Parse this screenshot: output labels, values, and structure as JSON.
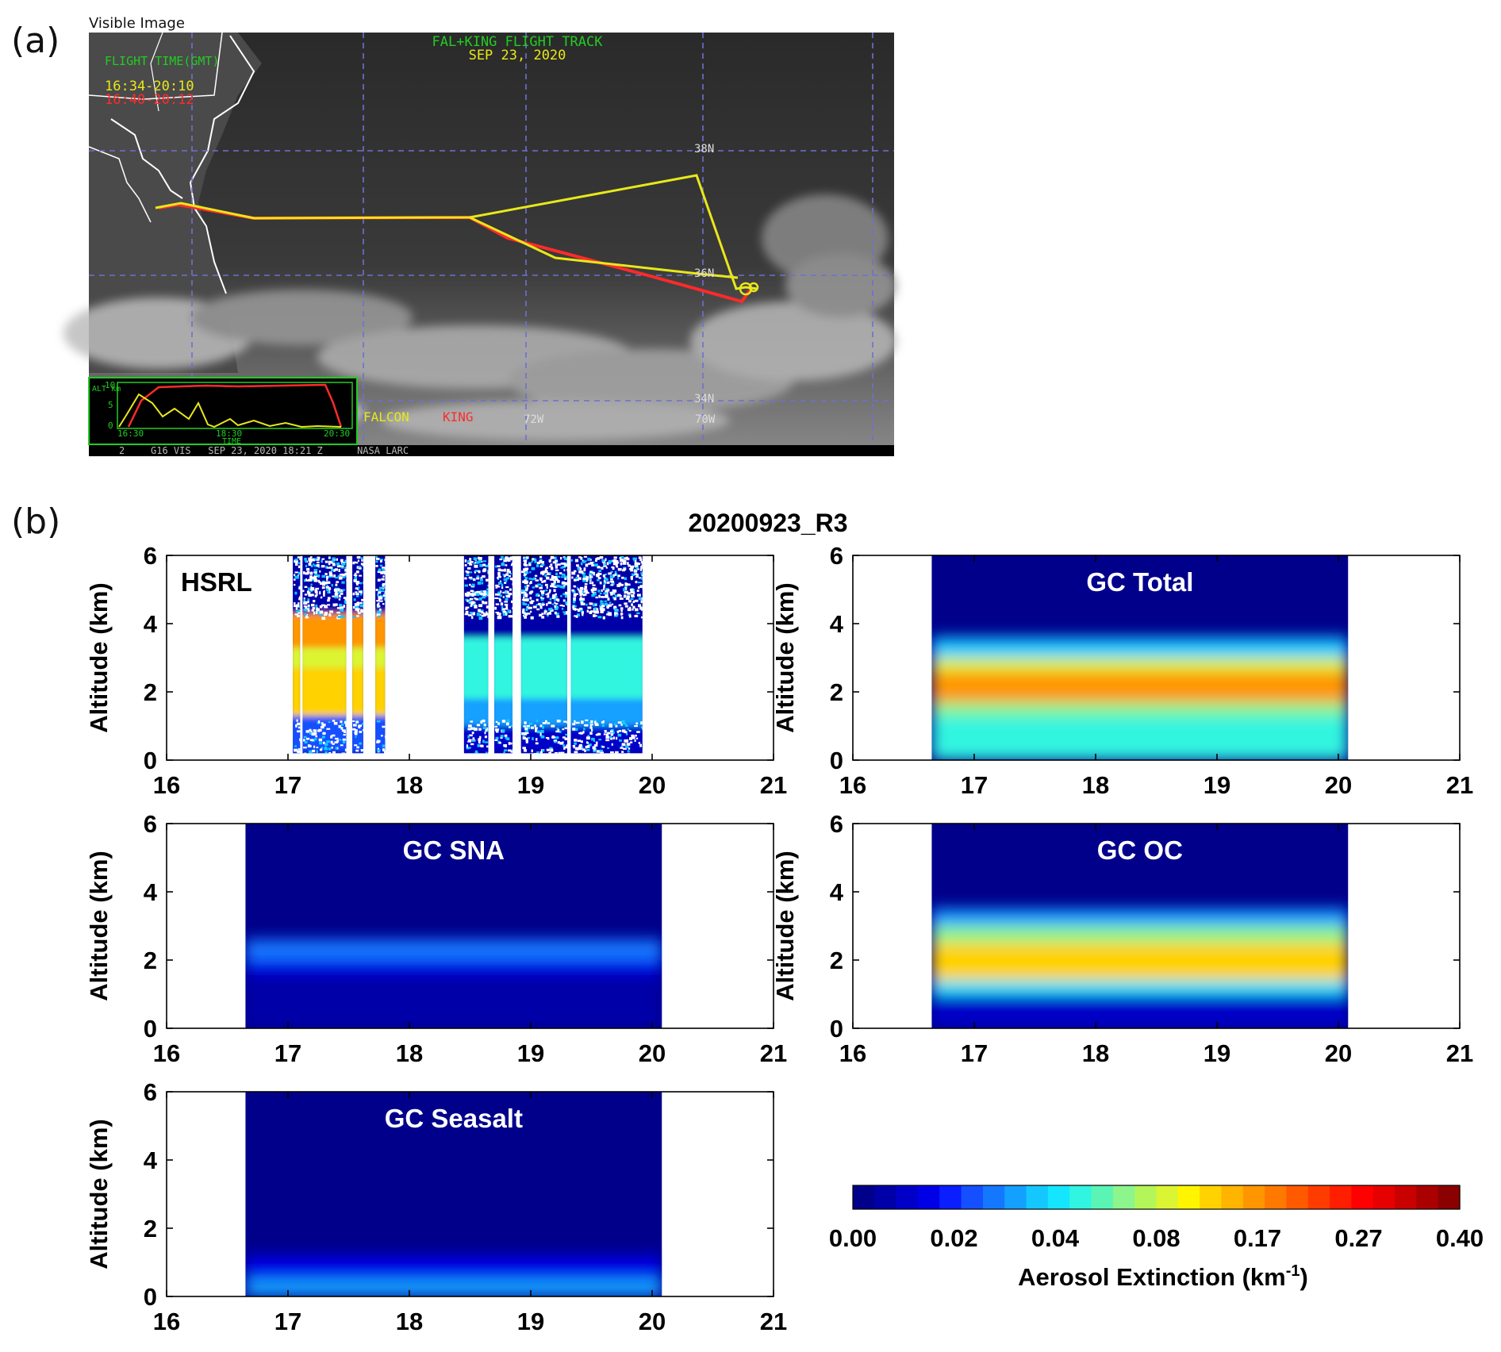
{
  "panel_a": {
    "letter": "(a)",
    "image_label": "Visible Image",
    "title_line1": "FAL+KING FLIGHT TRACK",
    "title_line2": "SEP 23, 2020",
    "flight_time_label": "FLIGHT TIME(GMT)",
    "falcon_time": "16:34-20:10",
    "king_time": "16:40-20:12",
    "lat_labels": [
      "38N",
      "36N",
      "34N"
    ],
    "lon_labels": [
      "72W",
      "70W"
    ],
    "legend_falcon": "FALCON",
    "legend_king": "KING",
    "inset_ylabel": "ALT km",
    "inset_yticks": [
      "10",
      "5",
      "0"
    ],
    "inset_xticks": [
      "16:30",
      "18:30",
      "20:30"
    ],
    "inset_xlabel": "TIME",
    "footer": "G16 VIS   SEP 23, 2020 18:21 Z      NASA LARC",
    "footer_num": "2",
    "colors": {
      "falcon": "#e8e81a",
      "king": "#ff2a2a",
      "grid": "#6f6fd0",
      "label_green": "#22cc22"
    }
  },
  "panel_b": {
    "letter": "(b)",
    "title": "20200923_R3"
  },
  "chart_data": [
    {
      "type": "heatmap",
      "title": "HSRL",
      "ylabel": "Altitude (km)",
      "xlabel": "",
      "xlim": [
        16,
        21
      ],
      "ylim": [
        0,
        6
      ],
      "xticks": [
        "16",
        "17",
        "18",
        "19",
        "20",
        "21"
      ],
      "yticks": [
        "0",
        "2",
        "4",
        "6"
      ],
      "data_segments_hours": [
        [
          17.04,
          17.1
        ],
        [
          17.12,
          17.48
        ],
        [
          17.53,
          17.62
        ],
        [
          17.72,
          17.8
        ],
        [
          18.45,
          18.65
        ],
        [
          18.7,
          18.85
        ],
        [
          18.92,
          19.3
        ],
        [
          19.33,
          19.92
        ]
      ],
      "profiles": [
        {
          "x": 17.3,
          "layers": [
            {
              "alt": [
                0.2,
                1.3
              ],
              "value": 0.02
            },
            {
              "alt": [
                1.3,
                2.7
              ],
              "value": 0.12
            },
            {
              "alt": [
                2.7,
                3.3
              ],
              "value": 0.08
            },
            {
              "alt": [
                3.3,
                4.3
              ],
              "value": 0.17
            },
            {
              "alt": [
                4.3,
                6.0
              ],
              "value": 0.005
            }
          ]
        },
        {
          "x": 19.4,
          "layers": [
            {
              "alt": [
                0.2,
                1.0
              ],
              "value": 0.01
            },
            {
              "alt": [
                1.0,
                1.8
              ],
              "value": 0.03
            },
            {
              "alt": [
                1.8,
                3.6
              ],
              "value": 0.05
            },
            {
              "alt": [
                3.6,
                6.0
              ],
              "value": 0.005
            }
          ]
        }
      ]
    },
    {
      "type": "heatmap",
      "title": "GC Total",
      "ylabel": "Altitude (km)",
      "xlim": [
        16,
        21
      ],
      "ylim": [
        0,
        6
      ],
      "xticks": [
        "16",
        "17",
        "18",
        "19",
        "20",
        "21"
      ],
      "yticks": [
        "0",
        "2",
        "4",
        "6"
      ],
      "x_extent": [
        16.65,
        20.08
      ],
      "profile": [
        {
          "alt": [
            0.0,
            1.3
          ],
          "value": 0.045
        },
        {
          "alt": [
            1.3,
            1.7
          ],
          "value": 0.07
        },
        {
          "alt": [
            1.7,
            2.6
          ],
          "value": 0.17
        },
        {
          "alt": [
            2.6,
            3.0
          ],
          "value": 0.08
        },
        {
          "alt": [
            3.0,
            3.6
          ],
          "value": 0.035
        },
        {
          "alt": [
            3.6,
            6.0
          ],
          "value": 0.0
        }
      ]
    },
    {
      "type": "heatmap",
      "title": "GC SNA",
      "ylabel": "Altitude (km)",
      "xlim": [
        16,
        21
      ],
      "ylim": [
        0,
        6
      ],
      "xticks": [
        "16",
        "17",
        "18",
        "19",
        "20",
        "21"
      ],
      "yticks": [
        "0",
        "2",
        "4",
        "6"
      ],
      "x_extent": [
        16.65,
        20.08
      ],
      "profile": [
        {
          "alt": [
            0.0,
            1.6
          ],
          "value": 0.005
        },
        {
          "alt": [
            1.6,
            2.0
          ],
          "value": 0.015
        },
        {
          "alt": [
            2.0,
            2.6
          ],
          "value": 0.025
        },
        {
          "alt": [
            2.6,
            6.0
          ],
          "value": 0.0
        }
      ]
    },
    {
      "type": "heatmap",
      "title": "GC OC",
      "ylabel": "Altitude (km)",
      "xlim": [
        16,
        21
      ],
      "ylim": [
        0,
        6
      ],
      "xticks": [
        "16",
        "17",
        "18",
        "19",
        "20",
        "21"
      ],
      "yticks": [
        "0",
        "2",
        "4",
        "6"
      ],
      "x_extent": [
        16.65,
        20.08
      ],
      "profile": [
        {
          "alt": [
            0.0,
            1.0
          ],
          "value": 0.01
        },
        {
          "alt": [
            1.0,
            1.4
          ],
          "value": 0.04
        },
        {
          "alt": [
            1.4,
            2.5
          ],
          "value": 0.12
        },
        {
          "alt": [
            2.5,
            3.0
          ],
          "value": 0.07
        },
        {
          "alt": [
            3.0,
            3.5
          ],
          "value": 0.03
        },
        {
          "alt": [
            3.5,
            6.0
          ],
          "value": 0.0
        }
      ]
    },
    {
      "type": "heatmap",
      "title": "GC Seasalt",
      "ylabel": "Altitude (km)",
      "xlim": [
        16,
        21
      ],
      "ylim": [
        0,
        6
      ],
      "xticks": [
        "16",
        "17",
        "18",
        "19",
        "20",
        "21"
      ],
      "yticks": [
        "0",
        "2",
        "4",
        "6"
      ],
      "x_extent": [
        16.65,
        20.08
      ],
      "profile": [
        {
          "alt": [
            0.0,
            0.5
          ],
          "value": 0.03
        },
        {
          "alt": [
            0.5,
            1.2
          ],
          "value": 0.015
        },
        {
          "alt": [
            1.2,
            6.0
          ],
          "value": 0.0
        }
      ]
    }
  ],
  "colorbar": {
    "label": "Aerosol Extinction (km",
    "label_sup": "-1",
    "label_end": ")",
    "ticks": [
      "0.00",
      "0.02",
      "0.04",
      "0.08",
      "0.17",
      "0.27",
      "0.40"
    ],
    "colors": [
      "#00008b",
      "#0000a8",
      "#0000c8",
      "#0000e6",
      "#0a1eff",
      "#1450ff",
      "#1478ff",
      "#14a0ff",
      "#14c8ff",
      "#14e6ff",
      "#30f5e0",
      "#5af5b4",
      "#8cf58c",
      "#b4f55a",
      "#dcf532",
      "#fff500",
      "#ffd200",
      "#ffb400",
      "#ff9600",
      "#ff7800",
      "#ff5a00",
      "#ff3c00",
      "#ff1e00",
      "#ff0000",
      "#e60000",
      "#c80000",
      "#aa0000",
      "#8b0000"
    ]
  }
}
